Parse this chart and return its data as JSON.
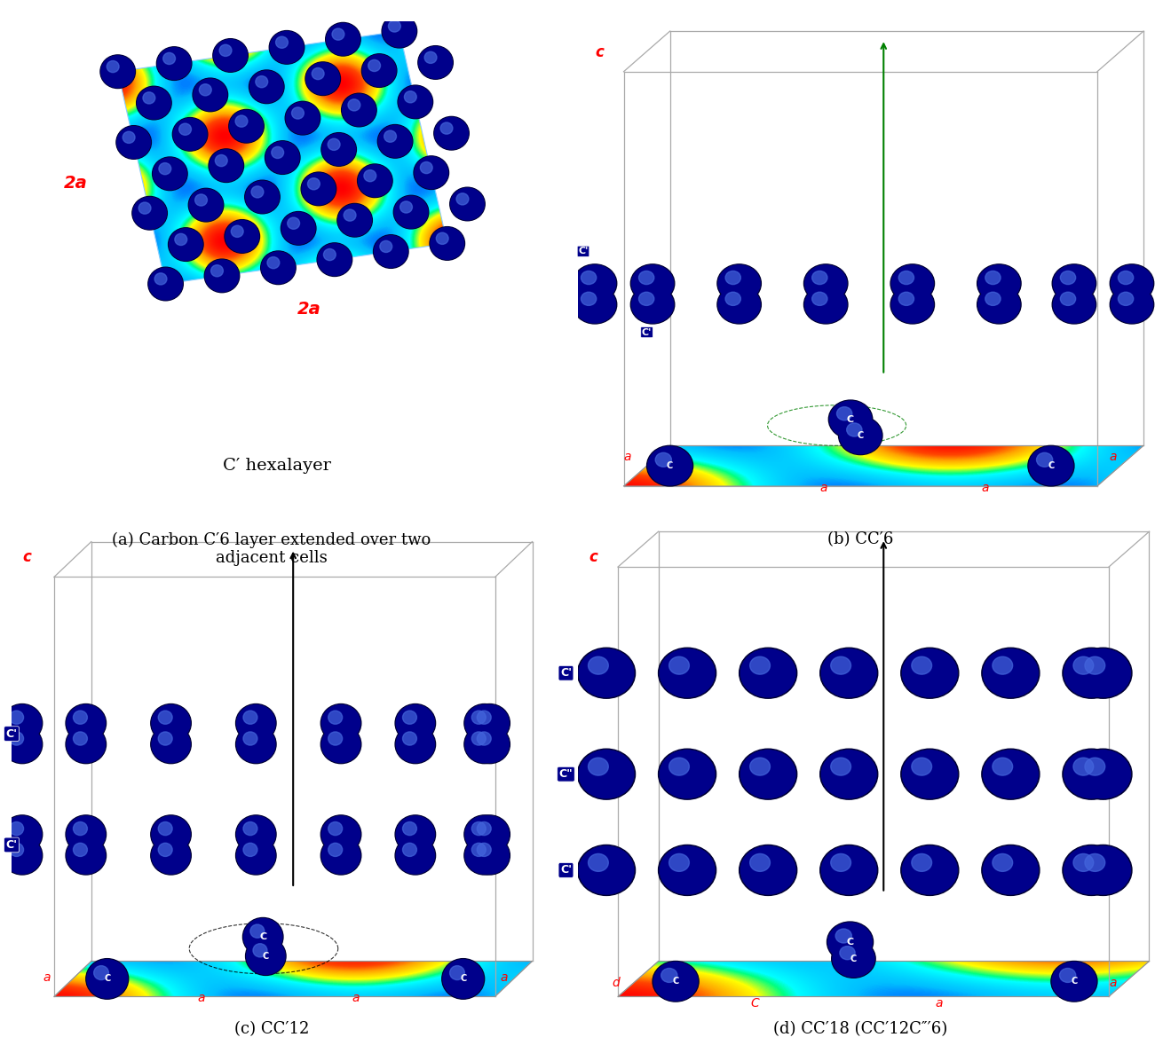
{
  "figsize": [
    13.01,
    11.87
  ],
  "dpi": 100,
  "bg_color": "#ffffff",
  "atom_color": "#00008B",
  "highlight_color": "#3333AA",
  "box_color": "#aaaaaa",
  "red_color": "#FF0000",
  "green_color": "#008000",
  "caption_a": "(a) Carbon C′6 layer extended over two\nadjacent cells",
  "caption_b": "(b) CC′6",
  "caption_c": "(c) CC′12",
  "caption_d": "(d) CC′18 (CC′12C″′6)",
  "sublabel_a": "C′ hexalayer"
}
